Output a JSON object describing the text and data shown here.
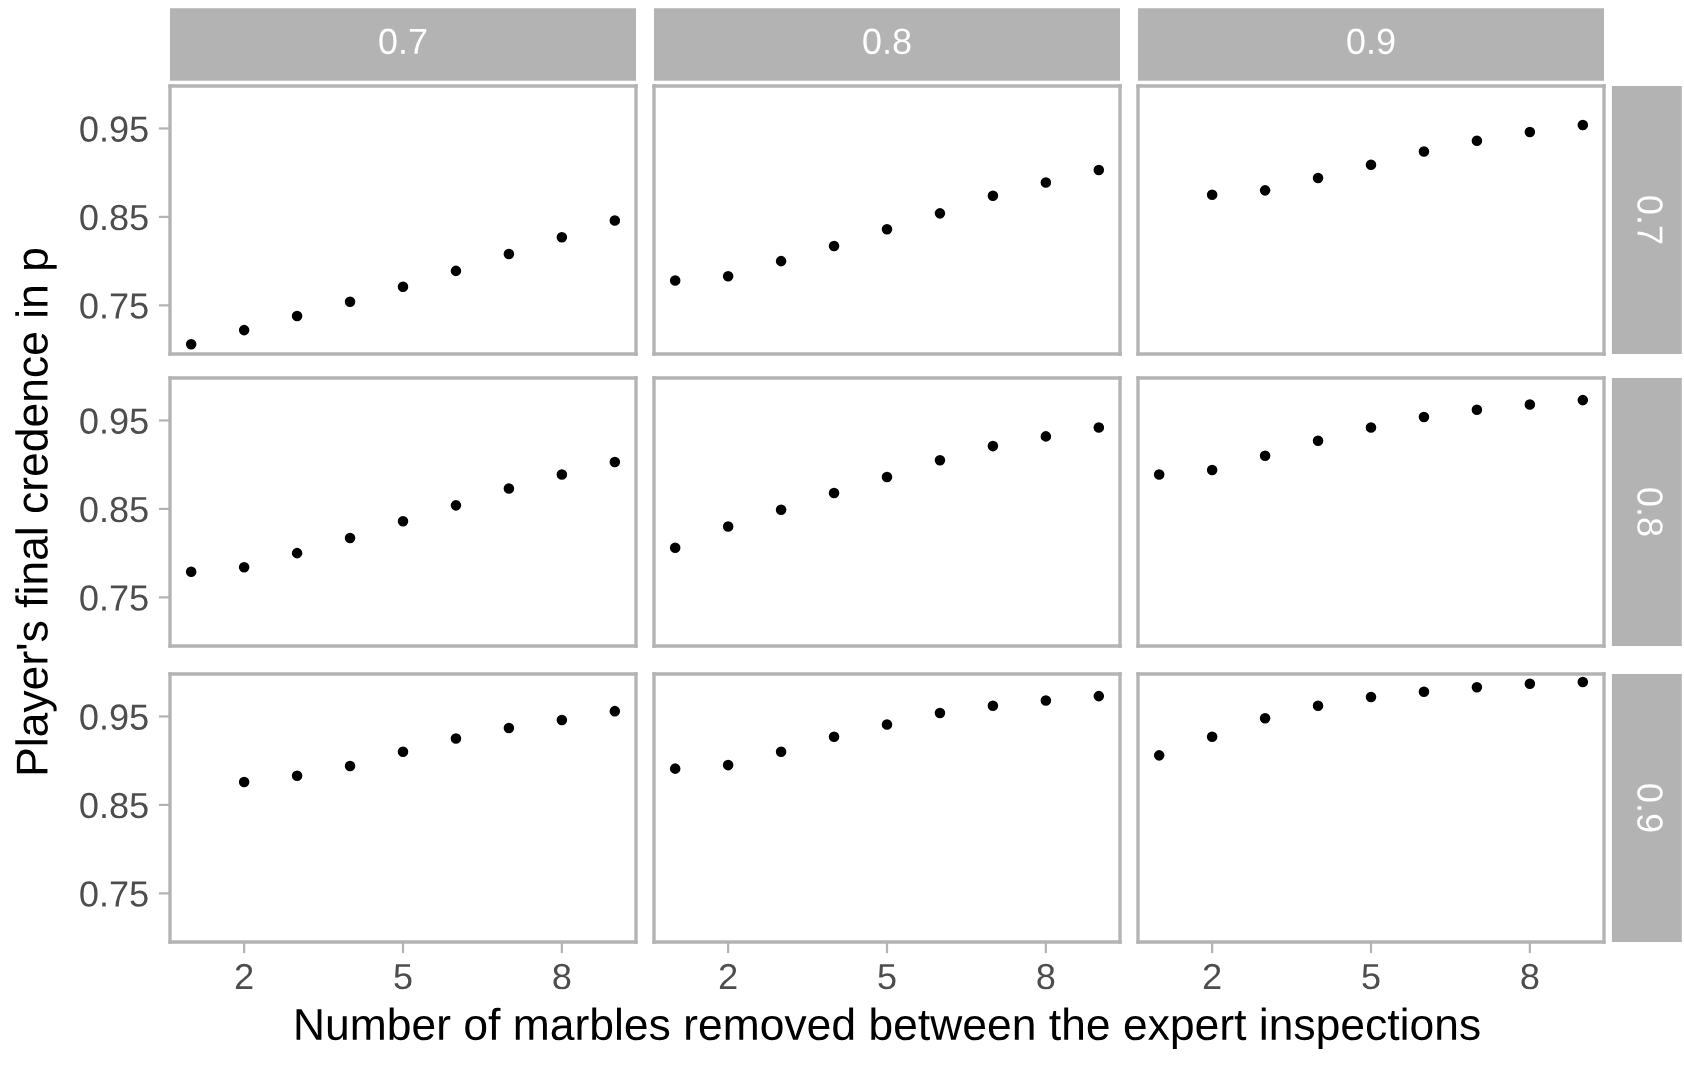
{
  "chart_data": [
    {
      "type": "scatter",
      "title": "0.7",
      "x": [
        1,
        2,
        3,
        4,
        5,
        6,
        7,
        8,
        9
      ],
      "values": [
        0.706,
        0.722,
        0.738,
        0.754,
        0.771,
        0.789,
        0.808,
        0.827,
        0.846
      ],
      "color": "#000000",
      "marker": "circle",
      "xlim": [
        0.6,
        9.4
      ],
      "ylim": [
        0.695,
        0.998
      ],
      "xticks": [
        2,
        5,
        8
      ],
      "yticks": [
        0.75,
        0.85,
        0.95
      ],
      "tick_labels": "y"
    },
    {
      "type": "scatter",
      "title": "0.8",
      "x": [
        1,
        2,
        3,
        4,
        5,
        6,
        7,
        8,
        9
      ],
      "values": [
        0.778,
        0.783,
        0.8,
        0.817,
        0.836,
        0.854,
        0.874,
        0.889,
        0.903
      ],
      "color": "#000000",
      "marker": "circle",
      "xlim": [
        0.6,
        9.4
      ],
      "ylim": [
        0.695,
        0.998
      ],
      "xticks": [
        2,
        5,
        8
      ],
      "yticks": [
        0.75,
        0.85,
        0.95
      ],
      "tick_labels": false
    },
    {
      "type": "scatter",
      "title": "0.9",
      "y2label": "0.7",
      "x": [
        2,
        3,
        4,
        5,
        6,
        7,
        8,
        9
      ],
      "values": [
        0.875,
        0.88,
        0.894,
        0.909,
        0.924,
        0.936,
        0.946,
        0.954
      ],
      "color": "#000000",
      "marker": "circle",
      "xlim": [
        0.6,
        9.4
      ],
      "ylim": [
        0.695,
        0.998
      ],
      "xticks": [
        2,
        5,
        8
      ],
      "yticks": [
        0.75,
        0.85,
        0.95
      ],
      "tick_labels": false
    },
    {
      "type": "scatter",
      "ylabel": "Player's final credence in p",
      "x": [
        1,
        2,
        3,
        4,
        5,
        6,
        7,
        8,
        9
      ],
      "values": [
        0.779,
        0.784,
        0.8,
        0.817,
        0.836,
        0.854,
        0.873,
        0.889,
        0.903
      ],
      "color": "#000000",
      "marker": "circle",
      "xlim": [
        0.6,
        9.4
      ],
      "ylim": [
        0.695,
        0.998
      ],
      "xticks": [
        2,
        5,
        8
      ],
      "yticks": [
        0.75,
        0.85,
        0.95
      ],
      "tick_labels": "y"
    },
    {
      "type": "scatter",
      "x": [
        1,
        2,
        3,
        4,
        5,
        6,
        7,
        8,
        9
      ],
      "values": [
        0.806,
        0.83,
        0.849,
        0.868,
        0.886,
        0.905,
        0.921,
        0.932,
        0.942
      ],
      "color": "#000000",
      "marker": "circle",
      "xlim": [
        0.6,
        9.4
      ],
      "ylim": [
        0.695,
        0.998
      ],
      "xticks": [
        2,
        5,
        8
      ],
      "yticks": [
        0.75,
        0.85,
        0.95
      ],
      "tick_labels": false
    },
    {
      "type": "scatter",
      "y2label": "0.8",
      "x": [
        1,
        2,
        3,
        4,
        5,
        6,
        7,
        8,
        9
      ],
      "values": [
        0.889,
        0.894,
        0.91,
        0.927,
        0.942,
        0.954,
        0.962,
        0.968,
        0.973
      ],
      "color": "#000000",
      "marker": "circle",
      "xlim": [
        0.6,
        9.4
      ],
      "ylim": [
        0.695,
        0.998
      ],
      "xticks": [
        2,
        5,
        8
      ],
      "yticks": [
        0.75,
        0.85,
        0.95
      ],
      "tick_labels": false
    },
    {
      "type": "scatter",
      "x": [
        2,
        3,
        4,
        5,
        6,
        7,
        8,
        9
      ],
      "values": [
        0.876,
        0.883,
        0.894,
        0.91,
        0.925,
        0.937,
        0.946,
        0.956
      ],
      "color": "#000000",
      "marker": "circle",
      "xlim": [
        0.6,
        9.4
      ],
      "ylim": [
        0.695,
        0.998
      ],
      "xticks": [
        2,
        5,
        8
      ],
      "yticks": [
        0.75,
        0.85,
        0.95
      ]
    },
    {
      "type": "scatter",
      "xlabel": "Number of marbles removed between the expert inspections",
      "x": [
        1,
        2,
        3,
        4,
        5,
        6,
        7,
        8,
        9
      ],
      "values": [
        0.891,
        0.895,
        0.91,
        0.927,
        0.941,
        0.954,
        0.962,
        0.968,
        0.973
      ],
      "color": "#000000",
      "marker": "circle",
      "xlim": [
        0.6,
        9.4
      ],
      "ylim": [
        0.695,
        0.998
      ],
      "xticks": [
        2,
        5,
        8
      ],
      "yticks": [
        0.75,
        0.85,
        0.95
      ],
      "tick_labels": "x"
    },
    {
      "type": "scatter",
      "y2label": "0.9",
      "x": [
        1,
        2,
        3,
        4,
        5,
        6,
        7,
        8,
        9
      ],
      "values": [
        0.906,
        0.927,
        0.948,
        0.962,
        0.972,
        0.978,
        0.983,
        0.987,
        0.989
      ],
      "color": "#000000",
      "marker": "circle",
      "xlim": [
        0.6,
        9.4
      ],
      "ylim": [
        0.695,
        0.998
      ],
      "xticks": [
        2,
        5,
        8
      ],
      "yticks": [
        0.75,
        0.85,
        0.95
      ],
      "tick_labels": "x"
    }
  ]
}
